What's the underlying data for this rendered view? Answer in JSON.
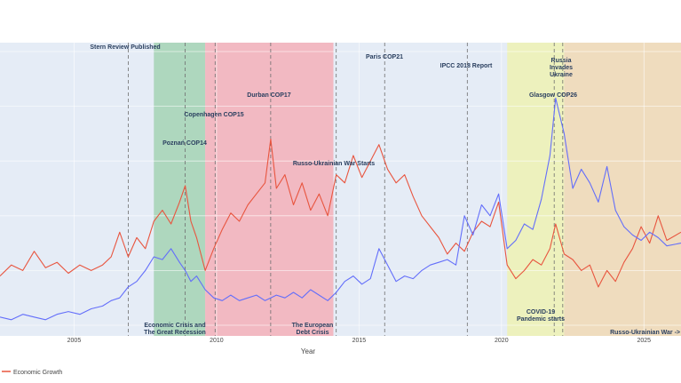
{
  "chart_data": {
    "type": "line",
    "title": "",
    "xlabel": "Year",
    "ylabel": "",
    "xlim": [
      2002.4,
      2026.3
    ],
    "ylim": [
      0,
      100
    ],
    "grid": true,
    "x_ticks": [
      "2005",
      "2010",
      "2015",
      "2020",
      "2025"
    ],
    "legend": {
      "placement": "bottom-left",
      "entries": [
        "Economic Growth"
      ]
    },
    "colors": {
      "economic_growth": "#e8553f",
      "second_series": "#636efa",
      "plot_bg": "#e5ecf6",
      "crisis_band": "#a4d3b4",
      "debt_band": "#f4b0b9",
      "covid_band": "#eef2b3",
      "war_band": "#f1d9b4"
    },
    "bands": [
      {
        "name": "Economic Crisis and The Great Recession",
        "x0": 2007.8,
        "x1": 2009.6
      },
      {
        "name": "The European Debt Crisis",
        "x0": 2009.6,
        "x1": 2014.1
      },
      {
        "name": "COVID-19 Pandemic starts",
        "x0": 2020.2,
        "x1": 2022.2
      },
      {
        "name": "Russo-Ukrainian War ->",
        "x0": 2022.2,
        "x1": 2026.3
      }
    ],
    "events": [
      {
        "label": "Stern Review Published",
        "x": 2006.9
      },
      {
        "label": "Poznań COP14",
        "x": 2008.9
      },
      {
        "label": "Copenhagen COP15",
        "x": 2009.95
      },
      {
        "label": "Durban COP17",
        "x": 2011.9
      },
      {
        "label": "Russo-Ukrainian War Starts",
        "x": 2014.2
      },
      {
        "label": "Paris COP21",
        "x": 2015.9
      },
      {
        "label": "IPCC 2018 Report",
        "x": 2018.8
      },
      {
        "label": "Glasgow COP26",
        "x": 2021.85
      },
      {
        "label": "Russia Invades Ukraine",
        "x": 2022.15
      }
    ],
    "band_labels": [
      {
        "lines": [
          "Economic Crisis and",
          "The Great Recession"
        ]
      },
      {
        "lines": [
          "The European",
          "Debt Crisis"
        ]
      },
      {
        "lines": [
          "COVID-19",
          "Pandemic starts"
        ]
      },
      {
        "lines": [
          "Russo-Ukrainian War ->"
        ]
      }
    ],
    "event_labels": [
      {
        "lines": [
          "Stern Review Published"
        ]
      },
      {
        "lines": [
          "Poznań COP14"
        ]
      },
      {
        "lines": [
          "Copenhagen COP15"
        ]
      },
      {
        "lines": [
          "Durban COP17"
        ]
      },
      {
        "lines": [
          "Russo-Ukrainian War Starts"
        ]
      },
      {
        "lines": [
          "Paris COP21"
        ]
      },
      {
        "lines": [
          "IPCC 2018 Report"
        ]
      },
      {
        "lines": [
          "Glasgow COP26"
        ]
      },
      {
        "lines": [
          "Russia",
          "Invades",
          "Ukraine"
        ]
      }
    ],
    "series": [
      {
        "name": "Economic Growth",
        "color": "#e8553f",
        "points": [
          [
            2002.4,
            18
          ],
          [
            2002.8,
            22
          ],
          [
            2003.2,
            20
          ],
          [
            2003.6,
            27
          ],
          [
            2004.0,
            21
          ],
          [
            2004.4,
            23
          ],
          [
            2004.8,
            19
          ],
          [
            2005.2,
            22
          ],
          [
            2005.6,
            20
          ],
          [
            2006.0,
            22
          ],
          [
            2006.3,
            25
          ],
          [
            2006.6,
            34
          ],
          [
            2006.9,
            25
          ],
          [
            2007.2,
            32
          ],
          [
            2007.5,
            28
          ],
          [
            2007.8,
            38
          ],
          [
            2008.1,
            42
          ],
          [
            2008.4,
            37
          ],
          [
            2008.7,
            45
          ],
          [
            2008.9,
            51
          ],
          [
            2009.1,
            38
          ],
          [
            2009.3,
            32
          ],
          [
            2009.6,
            20
          ],
          [
            2009.9,
            28
          ],
          [
            2010.2,
            35
          ],
          [
            2010.5,
            41
          ],
          [
            2010.8,
            38
          ],
          [
            2011.1,
            44
          ],
          [
            2011.4,
            48
          ],
          [
            2011.7,
            52
          ],
          [
            2011.9,
            68
          ],
          [
            2012.1,
            50
          ],
          [
            2012.4,
            55
          ],
          [
            2012.7,
            44
          ],
          [
            2013.0,
            52
          ],
          [
            2013.3,
            42
          ],
          [
            2013.6,
            48
          ],
          [
            2013.9,
            40
          ],
          [
            2014.2,
            55
          ],
          [
            2014.5,
            52
          ],
          [
            2014.8,
            62
          ],
          [
            2015.1,
            54
          ],
          [
            2015.4,
            60
          ],
          [
            2015.7,
            66
          ],
          [
            2016.0,
            57
          ],
          [
            2016.3,
            52
          ],
          [
            2016.6,
            55
          ],
          [
            2016.9,
            47
          ],
          [
            2017.2,
            40
          ],
          [
            2017.5,
            36
          ],
          [
            2017.8,
            32
          ],
          [
            2018.1,
            26
          ],
          [
            2018.4,
            30
          ],
          [
            2018.7,
            27
          ],
          [
            2019.0,
            34
          ],
          [
            2019.3,
            38
          ],
          [
            2019.6,
            36
          ],
          [
            2019.9,
            45
          ],
          [
            2020.2,
            22
          ],
          [
            2020.5,
            17
          ],
          [
            2020.8,
            20
          ],
          [
            2021.1,
            24
          ],
          [
            2021.4,
            22
          ],
          [
            2021.7,
            28
          ],
          [
            2021.9,
            37
          ],
          [
            2022.2,
            26
          ],
          [
            2022.5,
            24
          ],
          [
            2022.8,
            20
          ],
          [
            2023.1,
            22
          ],
          [
            2023.4,
            14
          ],
          [
            2023.7,
            20
          ],
          [
            2024.0,
            16
          ],
          [
            2024.3,
            23
          ],
          [
            2024.6,
            28
          ],
          [
            2024.9,
            36
          ],
          [
            2025.2,
            30
          ],
          [
            2025.5,
            40
          ],
          [
            2025.8,
            31
          ],
          [
            2026.3,
            34
          ]
        ]
      },
      {
        "name": "",
        "color": "#636efa",
        "points": [
          [
            2002.4,
            3
          ],
          [
            2002.8,
            2
          ],
          [
            2003.2,
            4
          ],
          [
            2003.6,
            3
          ],
          [
            2004.0,
            2
          ],
          [
            2004.4,
            4
          ],
          [
            2004.8,
            5
          ],
          [
            2005.2,
            4
          ],
          [
            2005.6,
            6
          ],
          [
            2006.0,
            7
          ],
          [
            2006.3,
            9
          ],
          [
            2006.6,
            10
          ],
          [
            2006.9,
            14
          ],
          [
            2007.2,
            16
          ],
          [
            2007.5,
            20
          ],
          [
            2007.8,
            25
          ],
          [
            2008.1,
            24
          ],
          [
            2008.4,
            28
          ],
          [
            2008.7,
            23
          ],
          [
            2008.9,
            20
          ],
          [
            2009.1,
            16
          ],
          [
            2009.3,
            18
          ],
          [
            2009.6,
            13
          ],
          [
            2009.9,
            10
          ],
          [
            2010.2,
            9
          ],
          [
            2010.5,
            11
          ],
          [
            2010.8,
            9
          ],
          [
            2011.1,
            10
          ],
          [
            2011.4,
            11
          ],
          [
            2011.7,
            9
          ],
          [
            2011.9,
            10
          ],
          [
            2012.1,
            11
          ],
          [
            2012.4,
            10
          ],
          [
            2012.7,
            12
          ],
          [
            2013.0,
            10
          ],
          [
            2013.3,
            13
          ],
          [
            2013.6,
            11
          ],
          [
            2013.9,
            9
          ],
          [
            2014.2,
            12
          ],
          [
            2014.5,
            16
          ],
          [
            2014.8,
            18
          ],
          [
            2015.1,
            15
          ],
          [
            2015.4,
            17
          ],
          [
            2015.7,
            28
          ],
          [
            2016.0,
            22
          ],
          [
            2016.3,
            16
          ],
          [
            2016.6,
            18
          ],
          [
            2016.9,
            17
          ],
          [
            2017.2,
            20
          ],
          [
            2017.5,
            22
          ],
          [
            2017.8,
            23
          ],
          [
            2018.1,
            24
          ],
          [
            2018.4,
            22
          ],
          [
            2018.7,
            40
          ],
          [
            2019.0,
            33
          ],
          [
            2019.3,
            44
          ],
          [
            2019.6,
            40
          ],
          [
            2019.9,
            48
          ],
          [
            2020.2,
            28
          ],
          [
            2020.5,
            31
          ],
          [
            2020.8,
            37
          ],
          [
            2021.1,
            35
          ],
          [
            2021.4,
            46
          ],
          [
            2021.7,
            62
          ],
          [
            2021.9,
            83
          ],
          [
            2022.2,
            70
          ],
          [
            2022.5,
            50
          ],
          [
            2022.8,
            57
          ],
          [
            2023.1,
            52
          ],
          [
            2023.4,
            45
          ],
          [
            2023.7,
            58
          ],
          [
            2024.0,
            42
          ],
          [
            2024.3,
            36
          ],
          [
            2024.6,
            33
          ],
          [
            2024.9,
            31
          ],
          [
            2025.2,
            34
          ],
          [
            2025.5,
            32
          ],
          [
            2025.8,
            29
          ],
          [
            2026.3,
            30
          ]
        ]
      }
    ]
  }
}
